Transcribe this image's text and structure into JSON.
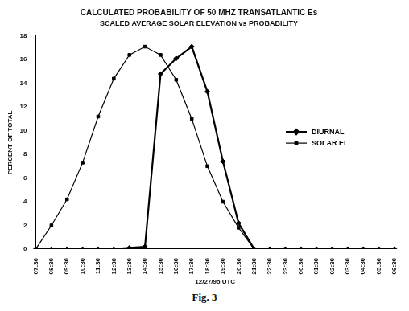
{
  "chart_data": {
    "type": "line",
    "title": "CALCULATED PROBABILITY OF 50 MHZ TRANSATLANTIC Es",
    "subtitle": "SCALED AVERAGE SOLAR ELEVATION vs PROBABILITY",
    "x_label": "12/27/95 UTC",
    "y_label": "PERCENT OF TOTAL",
    "caption": "Fig. 3",
    "categories": [
      "07:30",
      "08:30",
      "09:30",
      "10:30",
      "11:30",
      "12:30",
      "13:30",
      "14:30",
      "15:30",
      "16:30",
      "17:30",
      "18:30",
      "19:30",
      "20:30",
      "21:30",
      "22:30",
      "23:30",
      "00:30",
      "01:30",
      "02:30",
      "03:30",
      "04:30",
      "05:30",
      "06:30"
    ],
    "series": [
      {
        "name": "DIURNAL",
        "color": "#000000",
        "marker": "diamond",
        "line_style": "solid",
        "values": [
          0,
          0,
          0,
          0,
          0,
          0,
          0.1,
          0.2,
          14.8,
          16.1,
          17.1,
          13.3,
          7.4,
          2.2,
          0,
          0,
          0,
          0,
          0,
          0,
          0,
          0,
          0,
          0
        ]
      },
      {
        "name": "SOLAR EL",
        "color": "#000000",
        "marker": "square",
        "line_style": "solid",
        "values": [
          0,
          2,
          4.2,
          7.3,
          11.2,
          14.4,
          16.4,
          17.1,
          16.4,
          14.3,
          11,
          7,
          4,
          1.8,
          0,
          0,
          0,
          0,
          0,
          0,
          0,
          0,
          0,
          0
        ]
      }
    ],
    "ylim": [
      0,
      18
    ],
    "yticks": [
      0,
      2,
      4,
      6,
      8,
      10,
      12,
      14,
      16,
      18
    ],
    "grid": false,
    "legend": "right"
  }
}
